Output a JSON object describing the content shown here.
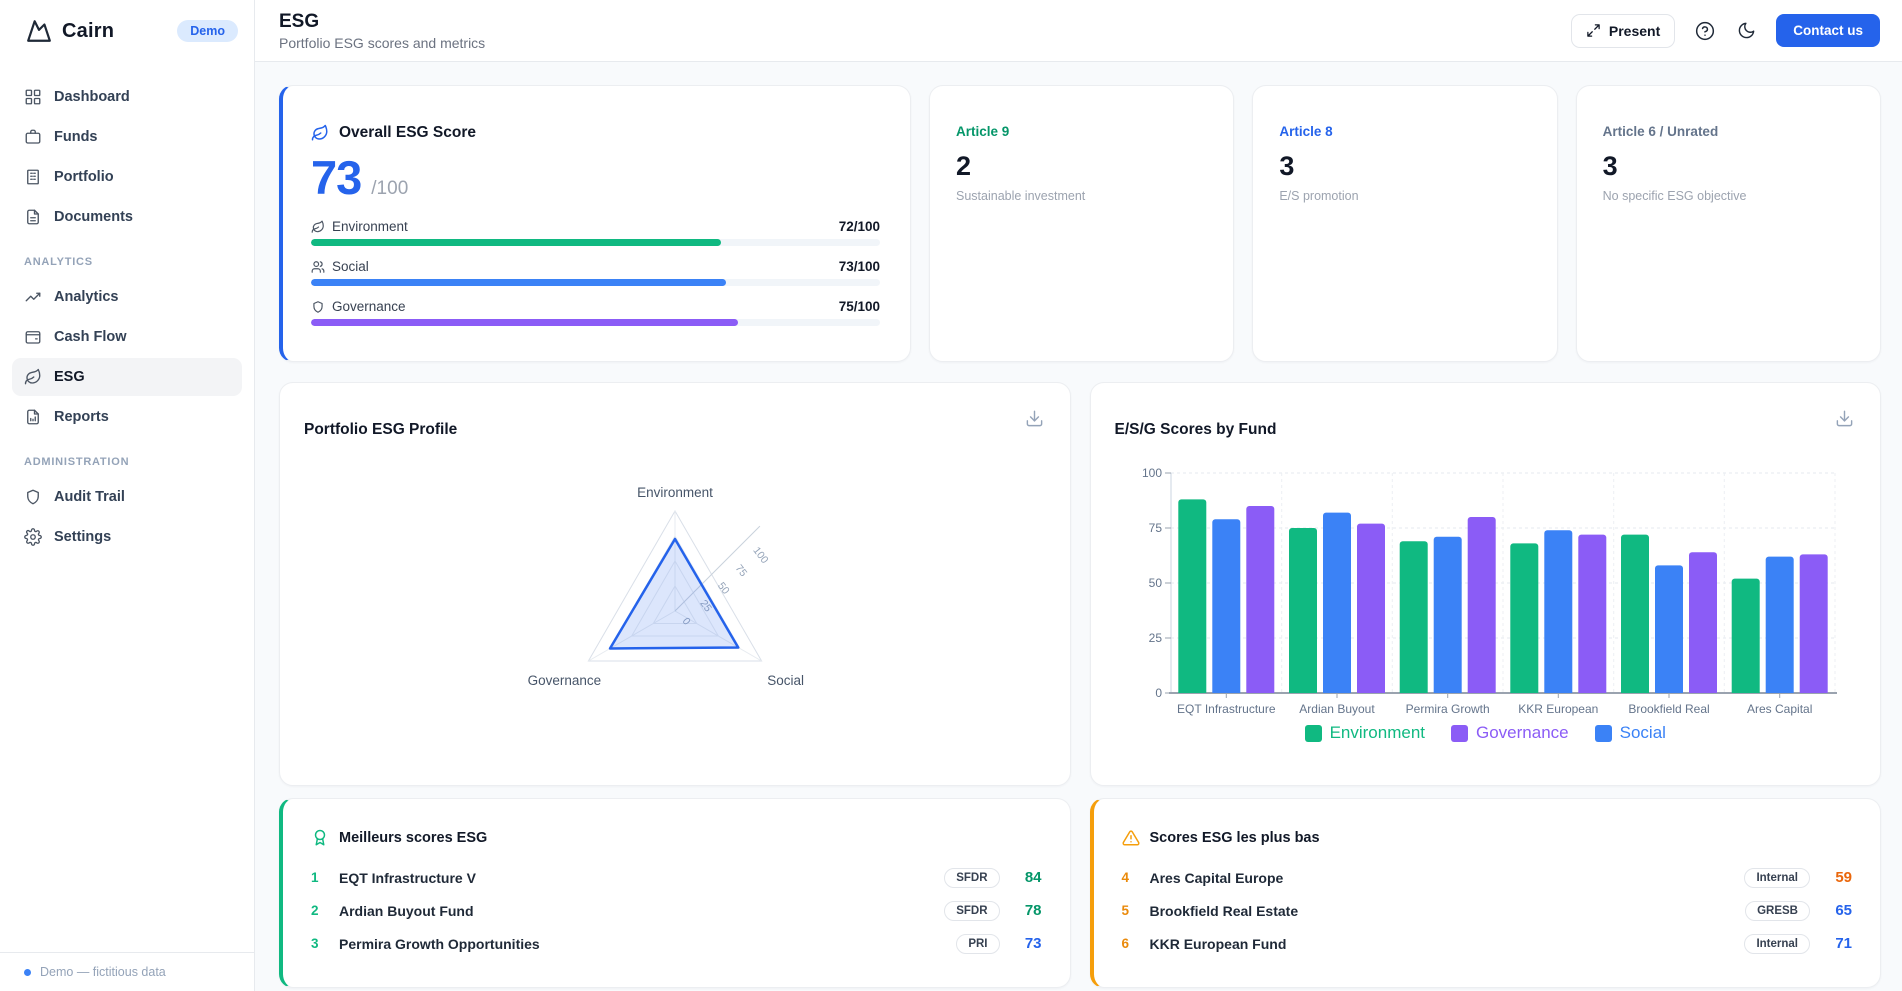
{
  "brand": {
    "name": "Cairn",
    "badge": "Demo",
    "accent": "#2563eb"
  },
  "sidebar": {
    "main_items": [
      {
        "label": "Dashboard",
        "icon": "dashboard-icon"
      },
      {
        "label": "Funds",
        "icon": "funds-icon"
      },
      {
        "label": "Portfolio",
        "icon": "portfolio-icon"
      },
      {
        "label": "Documents",
        "icon": "documents-icon"
      }
    ],
    "sections": [
      {
        "label": "ANALYTICS",
        "items": [
          {
            "label": "Analytics",
            "icon": "analytics-icon"
          },
          {
            "label": "Cash Flow",
            "icon": "wallet-icon"
          },
          {
            "label": "ESG",
            "icon": "leaf-icon",
            "active": true
          },
          {
            "label": "Reports",
            "icon": "report-icon"
          }
        ]
      },
      {
        "label": "ADMINISTRATION",
        "items": [
          {
            "label": "Audit Trail",
            "icon": "shield-icon"
          },
          {
            "label": "Settings",
            "icon": "gear-icon"
          }
        ]
      }
    ],
    "footer_note": "Demo — fictitious data"
  },
  "header": {
    "title": "ESG",
    "subtitle": "Portfolio ESG scores and metrics",
    "present_label": "Present",
    "contact_label": "Contact us"
  },
  "overall_score": {
    "title": "Overall ESG Score",
    "score": "73",
    "denominator": "/100",
    "metrics": [
      {
        "label": "Environment",
        "value": "72/100",
        "pct": 72,
        "color": "#10b981",
        "icon": "leaf-icon"
      },
      {
        "label": "Social",
        "value": "73/100",
        "pct": 73,
        "color": "#3b82f6",
        "icon": "users-icon"
      },
      {
        "label": "Governance",
        "value": "75/100",
        "pct": 75,
        "color": "#8b5cf6",
        "icon": "shield-icon"
      }
    ]
  },
  "article_cards": [
    {
      "label": "Article 9",
      "color": "#059669",
      "value": "2",
      "description": "Sustainable investment"
    },
    {
      "label": "Article 8",
      "color": "#2563eb",
      "value": "3",
      "description": "E/S promotion"
    },
    {
      "label": "Article 6 / Unrated",
      "color": "#64748b",
      "value": "3",
      "description": "No specific ESG objective"
    }
  ],
  "chart_data": [
    {
      "type": "radar",
      "title": "Portfolio ESG Profile",
      "axes": [
        "Environment",
        "Social",
        "Governance"
      ],
      "values": [
        72,
        73,
        75
      ],
      "ticks": [
        0,
        25,
        50,
        75,
        100
      ],
      "range": [
        0,
        100
      ],
      "fill_color": "#2563eb",
      "grid": true
    },
    {
      "type": "bar",
      "title": "E/S/G Scores by Fund",
      "categories": [
        "EQT Infrastructure",
        "Ardian Buyout",
        "Permira Growth",
        "KKR European",
        "Brookfield Real",
        "Ares Capital"
      ],
      "series": [
        {
          "name": "Environment",
          "color": "#10b981",
          "values": [
            88,
            75,
            69,
            68,
            72,
            52
          ]
        },
        {
          "name": "Social",
          "color": "#3b82f6",
          "values": [
            79,
            82,
            71,
            74,
            58,
            62
          ]
        },
        {
          "name": "Governance",
          "color": "#8b5cf6",
          "values": [
            85,
            77,
            80,
            72,
            64,
            63
          ]
        }
      ],
      "legend": [
        {
          "name": "Environment",
          "color": "#10b981"
        },
        {
          "name": "Governance",
          "color": "#8b5cf6"
        },
        {
          "name": "Social",
          "color": "#3b82f6"
        }
      ],
      "ylim": [
        0,
        100
      ],
      "yticks": [
        0,
        25,
        50,
        75,
        100
      ],
      "legend_position": "bottom",
      "grid": "dashed"
    }
  ],
  "top_scores": {
    "title": "Meilleurs scores ESG",
    "accent": "#10b981",
    "rows": [
      {
        "rank": "1",
        "name": "EQT Infrastructure V",
        "badge": "SFDR",
        "score": "84",
        "score_color": "#059669"
      },
      {
        "rank": "2",
        "name": "Ardian Buyout Fund",
        "badge": "SFDR",
        "score": "78",
        "score_color": "#059669"
      },
      {
        "rank": "3",
        "name": "Permira Growth Opportunities",
        "badge": "PRI",
        "score": "73",
        "score_color": "#2563eb"
      }
    ]
  },
  "bottom_scores": {
    "title": "Scores ESG les plus bas",
    "accent": "#ea8a0b",
    "rows": [
      {
        "rank": "4",
        "name": "Ares Capital Europe",
        "badge": "Internal",
        "score": "59",
        "score_color": "#ea670c"
      },
      {
        "rank": "5",
        "name": "Brookfield Real Estate",
        "badge": "GRESB",
        "score": "65",
        "score_color": "#2563eb"
      },
      {
        "rank": "6",
        "name": "KKR European Fund",
        "badge": "Internal",
        "score": "71",
        "score_color": "#2563eb"
      }
    ]
  }
}
